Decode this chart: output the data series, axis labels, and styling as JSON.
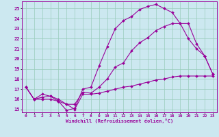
{
  "xlabel": "Windchill (Refroidissement éolien,°C)",
  "bg_color": "#cce8f0",
  "grid_color": "#99ccbb",
  "line_color": "#990099",
  "xlim": [
    -0.5,
    23.5
  ],
  "ylim": [
    14.7,
    25.7
  ],
  "xticks": [
    0,
    1,
    2,
    3,
    4,
    5,
    6,
    7,
    8,
    9,
    10,
    11,
    12,
    13,
    14,
    15,
    16,
    17,
    18,
    19,
    20,
    21,
    22,
    23
  ],
  "yticks": [
    15,
    16,
    17,
    18,
    19,
    20,
    21,
    22,
    23,
    24,
    25
  ],
  "line1_x": [
    0,
    1,
    2,
    3,
    4,
    5,
    6,
    7,
    8,
    9,
    10,
    11,
    12,
    13,
    14,
    15,
    16,
    17,
    18,
    19,
    20,
    21,
    22,
    23
  ],
  "line1_y": [
    17.2,
    16.0,
    16.5,
    16.3,
    15.8,
    14.9,
    15.1,
    17.0,
    17.2,
    19.3,
    21.2,
    23.0,
    23.8,
    24.2,
    24.9,
    25.2,
    25.4,
    25.0,
    24.6,
    23.5,
    22.0,
    21.0,
    20.3,
    18.5
  ],
  "line2_x": [
    0,
    1,
    2,
    3,
    4,
    5,
    6,
    7,
    8,
    9,
    10,
    11,
    12,
    13,
    14,
    15,
    16,
    17,
    18,
    19,
    20,
    21,
    22,
    23
  ],
  "line2_y": [
    17.2,
    16.0,
    16.2,
    16.3,
    16.0,
    15.5,
    15.5,
    16.7,
    16.6,
    17.2,
    18.0,
    19.2,
    19.6,
    20.8,
    21.6,
    22.1,
    22.8,
    23.2,
    23.5,
    23.5,
    23.5,
    21.5,
    20.3,
    18.5
  ],
  "line3_x": [
    0,
    1,
    2,
    3,
    4,
    5,
    6,
    7,
    8,
    9,
    10,
    11,
    12,
    13,
    14,
    15,
    16,
    17,
    18,
    19,
    20,
    21,
    22,
    23
  ],
  "line3_y": [
    17.2,
    16.0,
    16.0,
    16.0,
    15.8,
    15.5,
    15.0,
    16.5,
    16.5,
    16.6,
    16.8,
    17.0,
    17.2,
    17.3,
    17.5,
    17.7,
    17.9,
    18.0,
    18.2,
    18.3,
    18.3,
    18.3,
    18.3,
    18.3
  ]
}
